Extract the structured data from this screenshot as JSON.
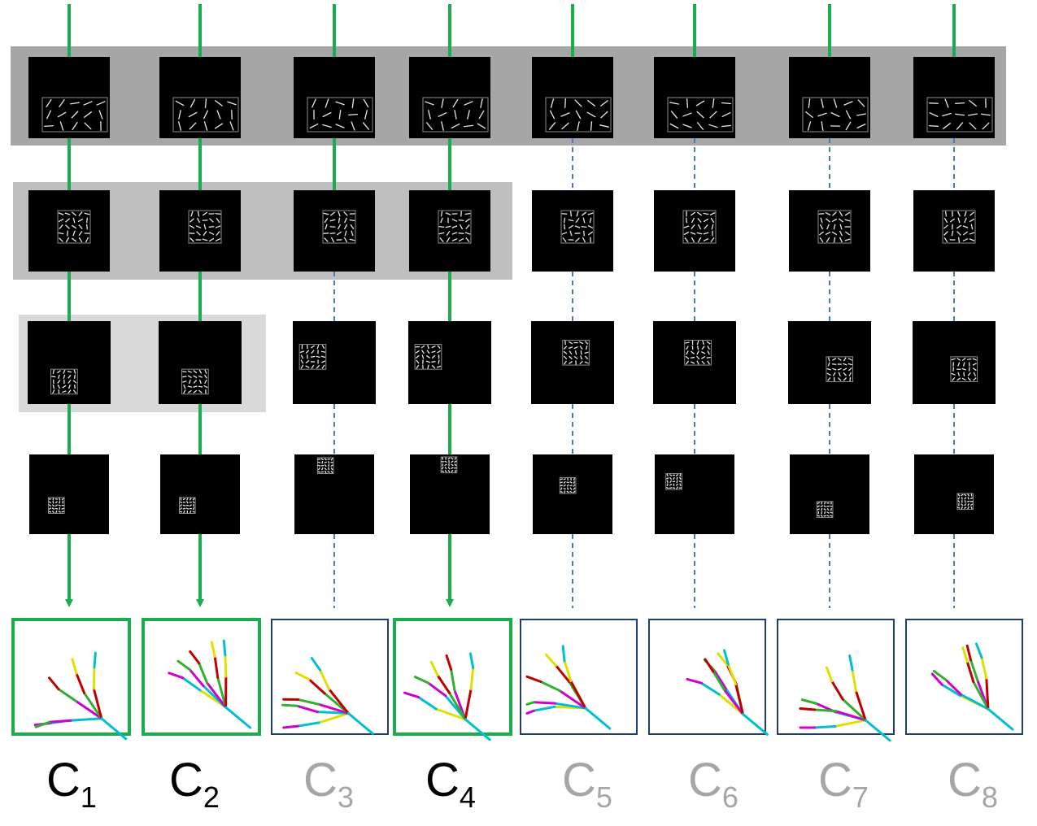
{
  "levels": 4,
  "columns": [
    {
      "label": "C",
      "sub": "1",
      "selected": true,
      "depth": 4
    },
    {
      "label": "C",
      "sub": "2",
      "selected": true,
      "depth": 4
    },
    {
      "label": "C",
      "sub": "3",
      "selected": false,
      "depth": 2
    },
    {
      "label": "C",
      "sub": "4",
      "selected": true,
      "depth": 4
    },
    {
      "label": "C",
      "sub": "5",
      "selected": false,
      "depth": 1
    },
    {
      "label": "C",
      "sub": "6",
      "selected": false,
      "depth": 1
    },
    {
      "label": "C",
      "sub": "7",
      "selected": false,
      "depth": 1
    },
    {
      "label": "C",
      "sub": "8",
      "selected": false,
      "depth": 1
    }
  ],
  "colors": {
    "selected_path": "#1aad4b",
    "rejected_path": "#4a7ab8",
    "selected_box": "#1aad4b",
    "rejected_box": "#1f3f6b",
    "band_1": "#a6a6a6",
    "band_2": "#bfbfbf",
    "band_3": "#d9d9d9",
    "label_active": "#000000",
    "label_inactive": "#a6a6a6",
    "thumb_bg": "#000000",
    "thumb_grid": "#8c8c8c",
    "skeleton_thumb": "#ff2020",
    "skeleton_index": "#d000d0",
    "skeleton_middle": "#30b030",
    "skeleton_ring": "#e0e000",
    "skeleton_pinky": "#00c0d0",
    "skeleton_palm": "#c00000"
  }
}
